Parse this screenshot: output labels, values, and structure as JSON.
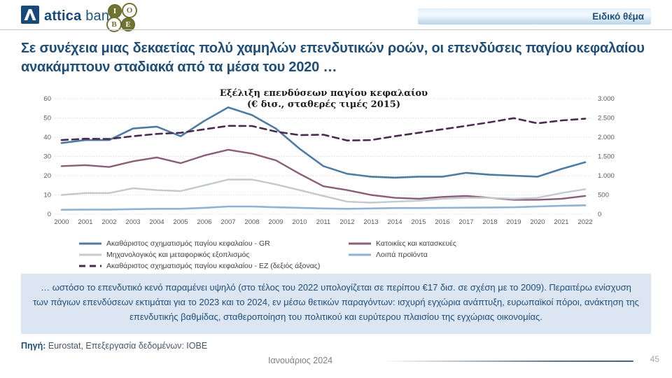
{
  "header": {
    "attica_bold": "attica",
    "attica_regular": "bank",
    "iobe_letters": [
      "I",
      "O",
      "B",
      "E"
    ],
    "badge": "Ειδικό θέμα"
  },
  "title": "Σε συνέχεια μιας δεκαετίας πολύ χαμηλών επενδυτικών ροών, οι επενδύσεις παγίου κεφαλαίου ανακάμπτουν σταδιακά από τα μέσα του 2020 …",
  "chart_data": {
    "type": "line",
    "title": "Εξέλιξη επενδύσεων παγίου κεφαλαίου",
    "subtitle": "(€ δισ., σταθερές τιμές 2015)",
    "x": [
      2000,
      2001,
      2002,
      2003,
      2004,
      2005,
      2006,
      2007,
      2008,
      2009,
      2010,
      2011,
      2012,
      2013,
      2014,
      2015,
      2016,
      2017,
      2018,
      2019,
      2020,
      2021,
      2022
    ],
    "left_axis": {
      "min": 0,
      "max": 60,
      "ticks": [
        "0",
        "10",
        "20",
        "30",
        "40",
        "50",
        "60"
      ]
    },
    "right_axis": {
      "min": 0,
      "max": 3000,
      "ticks": [
        "0",
        "500",
        "1.000",
        "1.500",
        "2.000",
        "2.500",
        "3.000"
      ]
    },
    "grid": true,
    "legend_position": "bottom",
    "series": [
      {
        "name": "Ακαθάριστος σχηματισμός  παγίου κεφαλαίου - GR",
        "axis": "left",
        "color": "#4E7BA4",
        "dash": false,
        "width": 2.6,
        "values": [
          37,
          38.5,
          38.5,
          44.5,
          45.5,
          40.5,
          48.5,
          55.5,
          51.5,
          44.5,
          34,
          25,
          21,
          19.5,
          19,
          19.5,
          19.5,
          21.5,
          20.5,
          20,
          19.5,
          23.5,
          27
        ]
      },
      {
        "name": "Κατοικίες και κατασκευές",
        "axis": "left",
        "color": "#8A5E78",
        "dash": false,
        "width": 2.4,
        "values": [
          25,
          25.5,
          24.5,
          27.5,
          29.5,
          26.5,
          30.5,
          33.5,
          31.5,
          28,
          21,
          14.5,
          12.5,
          10,
          8.5,
          8,
          9,
          9.5,
          8.5,
          7.5,
          7.5,
          8,
          9.5
        ]
      },
      {
        "name": "Μηχανολογικός και μεταφορικός εξοπλισμός",
        "axis": "left",
        "color": "#C4C9CD",
        "dash": false,
        "width": 2.4,
        "values": [
          10,
          11,
          11,
          13.5,
          12.5,
          12,
          15,
          18,
          18,
          15.5,
          12.5,
          9.5,
          6.5,
          6,
          6.5,
          7,
          8,
          8.5,
          8.5,
          8,
          8.5,
          11,
          13
        ]
      },
      {
        "name": "Λοιπά προϊόντα",
        "axis": "left",
        "color": "#8FB2D6",
        "dash": false,
        "width": 2.6,
        "values": [
          2.3,
          2.4,
          2.4,
          2.6,
          2.8,
          2.8,
          3.3,
          4,
          4,
          3.6,
          3.3,
          3,
          2.8,
          3,
          3.2,
          3.2,
          3.3,
          3.4,
          3.5,
          3.6,
          4,
          4.4,
          4.6
        ]
      },
      {
        "name": "Ακαθάριστος σχηματισμός  παγίου κεφαλαίου - EZ (δεξιός άξονας)",
        "axis": "right",
        "color": "#4B2A4F",
        "dash": true,
        "width": 2.6,
        "values": [
          1925,
          1960,
          1955,
          2025,
          2085,
          2115,
          2205,
          2295,
          2290,
          2145,
          2055,
          2065,
          1915,
          1925,
          2025,
          2115,
          2205,
          2295,
          2390,
          2495,
          2360,
          2435,
          2480
        ]
      }
    ]
  },
  "legend": {
    "columns": [
      [
        0,
        2,
        4
      ],
      [
        1,
        3
      ]
    ]
  },
  "note": "… ωστόσο το επενδυτικό κενό παραμένει υψηλό (στο τέλος του 2022  υπολογίζεται σε περίπου €17  δισ. σε σχέση με το 2009).  Περαιτέρω ενίσχυση των πάγιων επενδύσεων εκτιμάται για το 2023  και το 2024,  εν μέσω θετικών παραγόντων: ισχυρή εγχώρια ανάπτυξη, ευρωπαϊκοί πόροι, ανάκτηση της επενδυτικής βαθμίδας, σταθεροποίηση του πολιτικού και ευρύτερου πλαισίου της εγχώριας οικονομίας.",
  "footer": {
    "source_label": "Πηγή:",
    "source_text": " Eurostat, Επεξεργασία δεδομένων: ΙΟΒΕ",
    "date": "Ιανουάριος 2024",
    "page": "45"
  }
}
